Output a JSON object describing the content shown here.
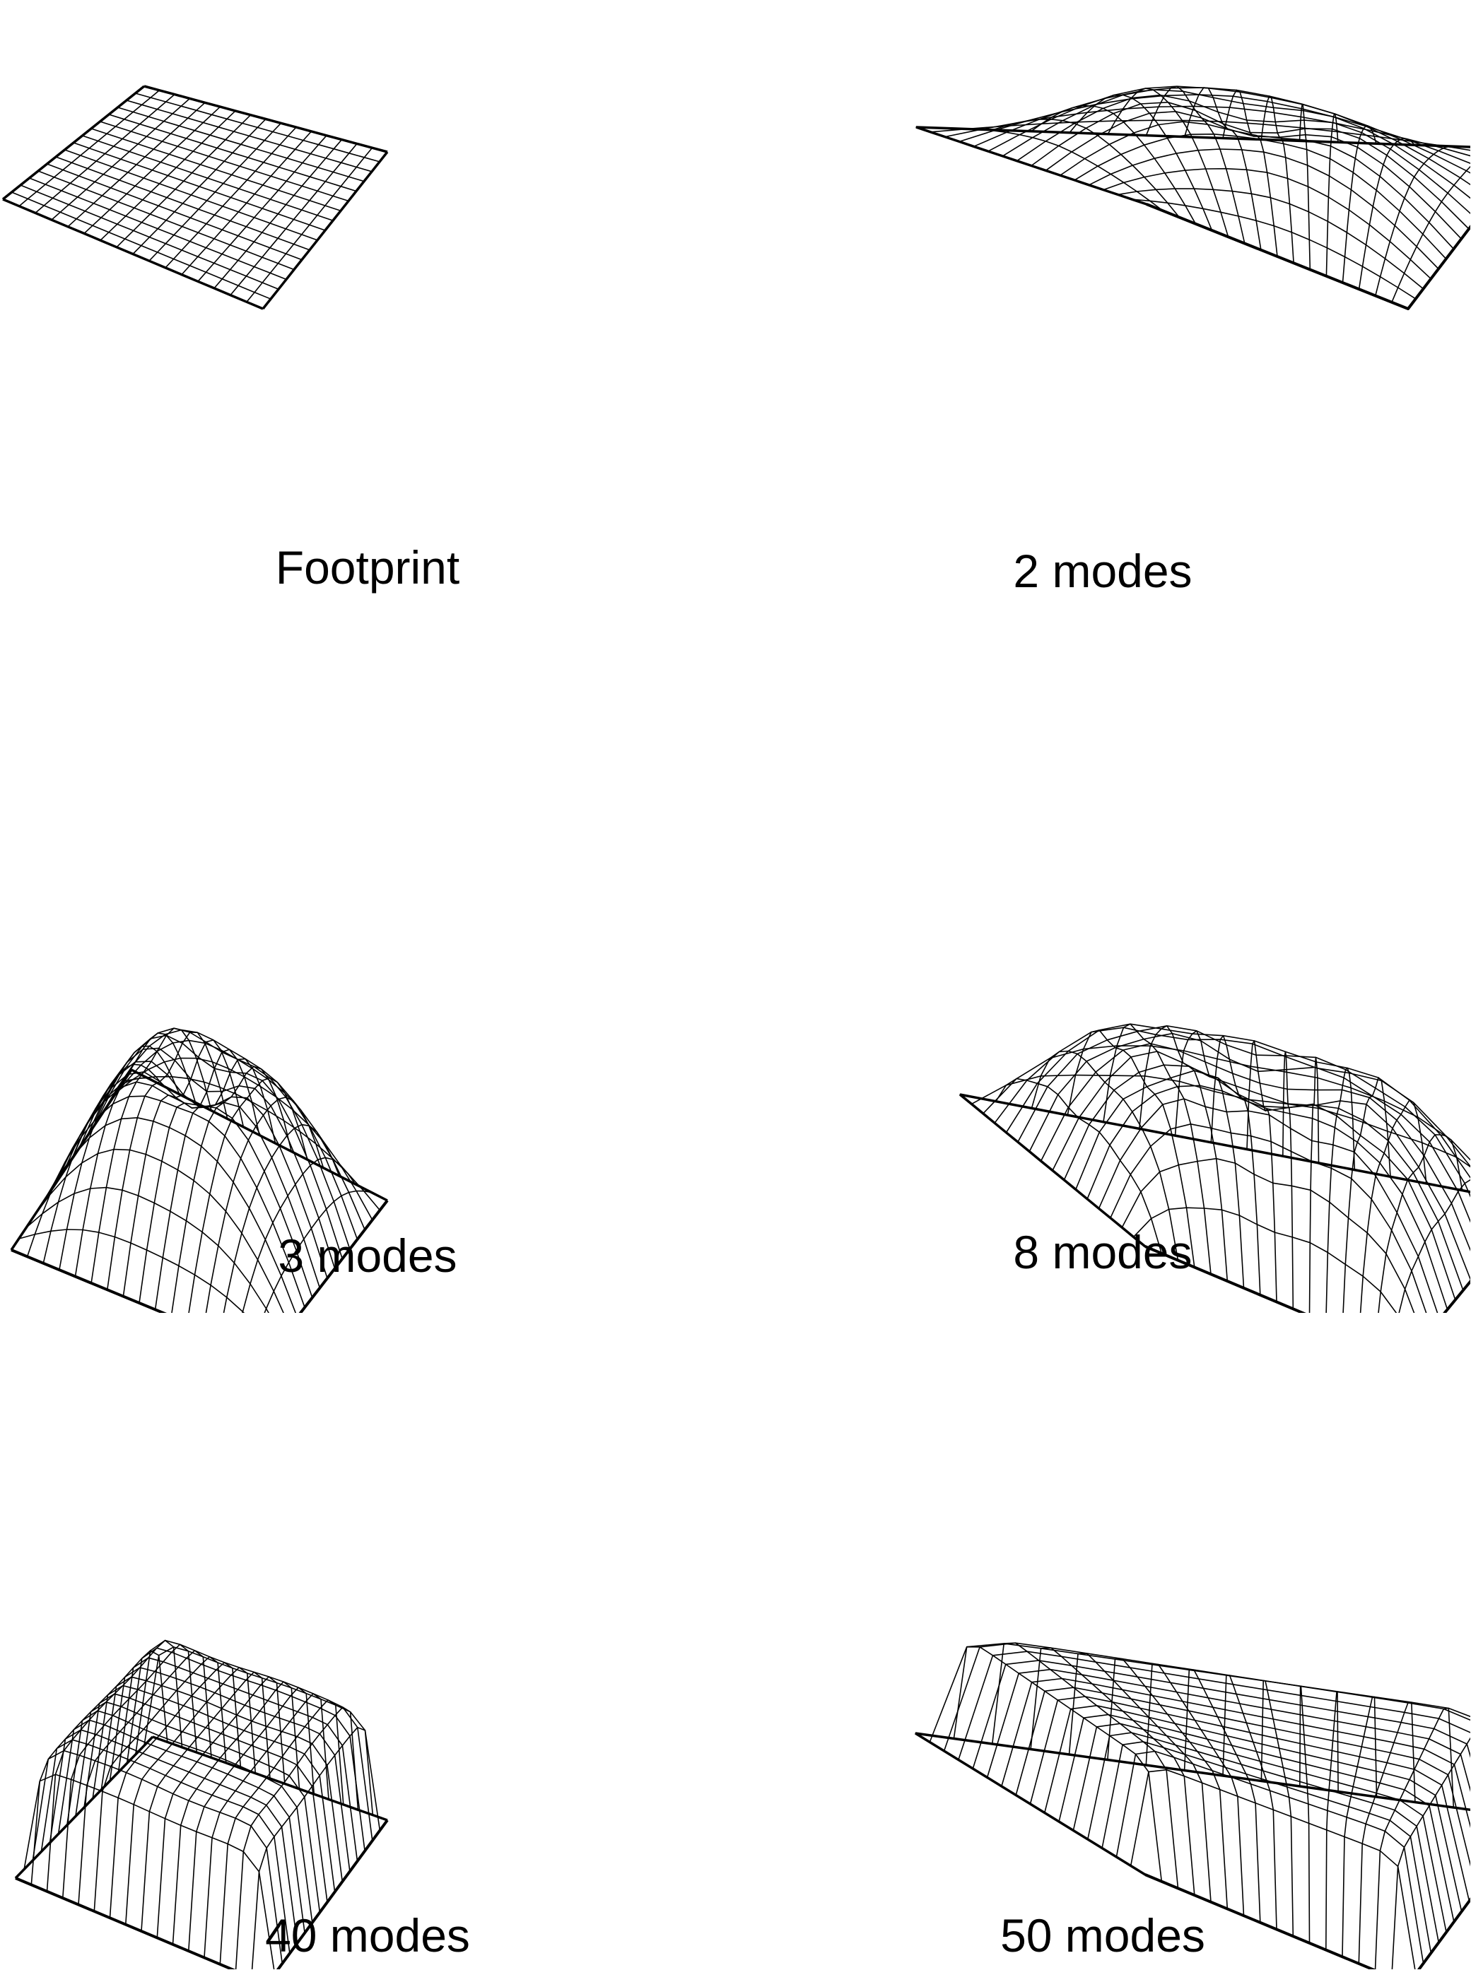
{
  "figure": {
    "panels": [
      {
        "caption": "Footprint",
        "modes": 0
      },
      {
        "caption": "2 modes",
        "modes": 2
      },
      {
        "caption": "3 modes",
        "modes": 3
      },
      {
        "caption": "8 modes",
        "modes": 8
      },
      {
        "caption": "40 modes",
        "modes": 40
      },
      {
        "caption": "50 modes",
        "modes": 50
      }
    ],
    "grid_size": 16,
    "line_color": "#000000",
    "background": "#ffffff"
  }
}
